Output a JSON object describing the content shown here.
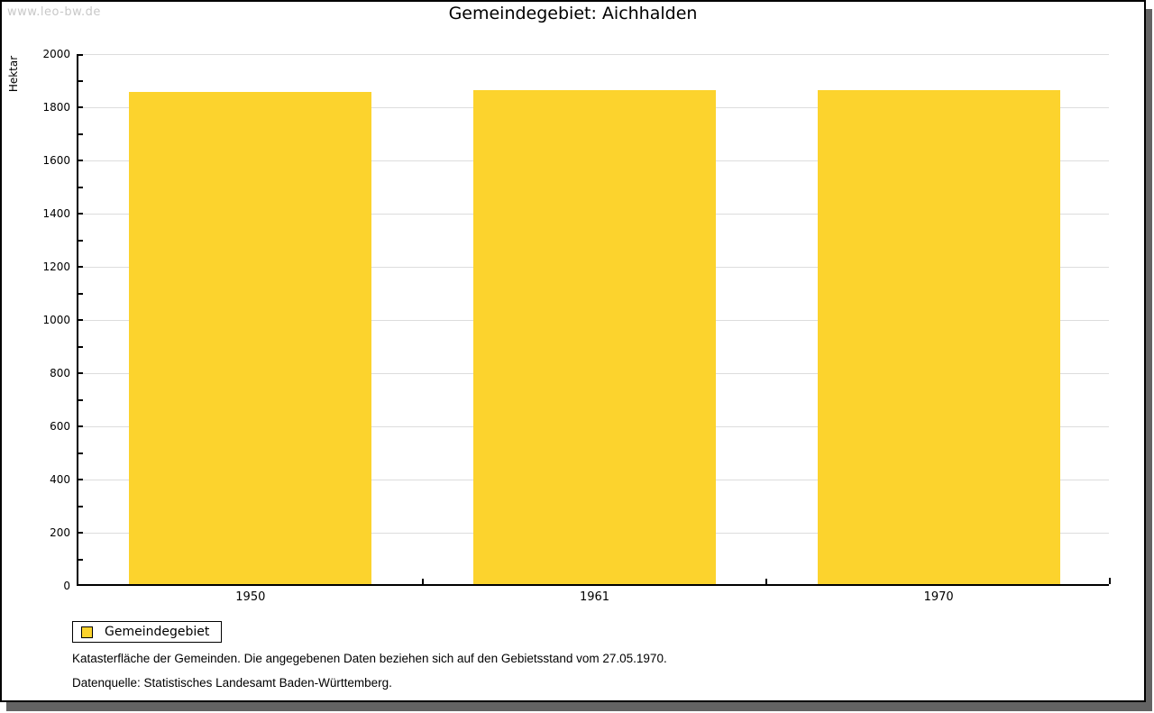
{
  "watermark": "www.leo-bw.de",
  "title": "Gemeindegebiet: Aichhalden",
  "chart_data": {
    "type": "bar",
    "title": "Gemeindegebiet: Aichhalden",
    "categories": [
      "1950",
      "1961",
      "1970"
    ],
    "series": [
      {
        "name": "Gemeindegebiet",
        "values": [
          1851,
          1857,
          1857
        ]
      }
    ],
    "xlabel": "",
    "ylabel": "Hektar",
    "ylim": [
      0,
      2000
    ],
    "ytick_major": 200,
    "ytick_minor": 100,
    "grid": "horizontal-major",
    "legend_position": "bottom-left",
    "bar_color": "#FCD32D"
  },
  "legend": {
    "items": [
      {
        "label": "Gemeindegebiet",
        "color": "#FCD32D"
      }
    ]
  },
  "footnotes": [
    "Katasterfläche der Gemeinden. Die angegebenen Daten beziehen sich auf den Gebietsstand vom 27.05.1970.",
    "Datenquelle: Statistisches Landesamt Baden-Württemberg."
  ],
  "colors": {
    "bar": "#FCD32D",
    "grid": "#DDDDDD",
    "axis": "#000000",
    "watermark": "#C8C8C8",
    "frame_shadow": "#636363"
  }
}
